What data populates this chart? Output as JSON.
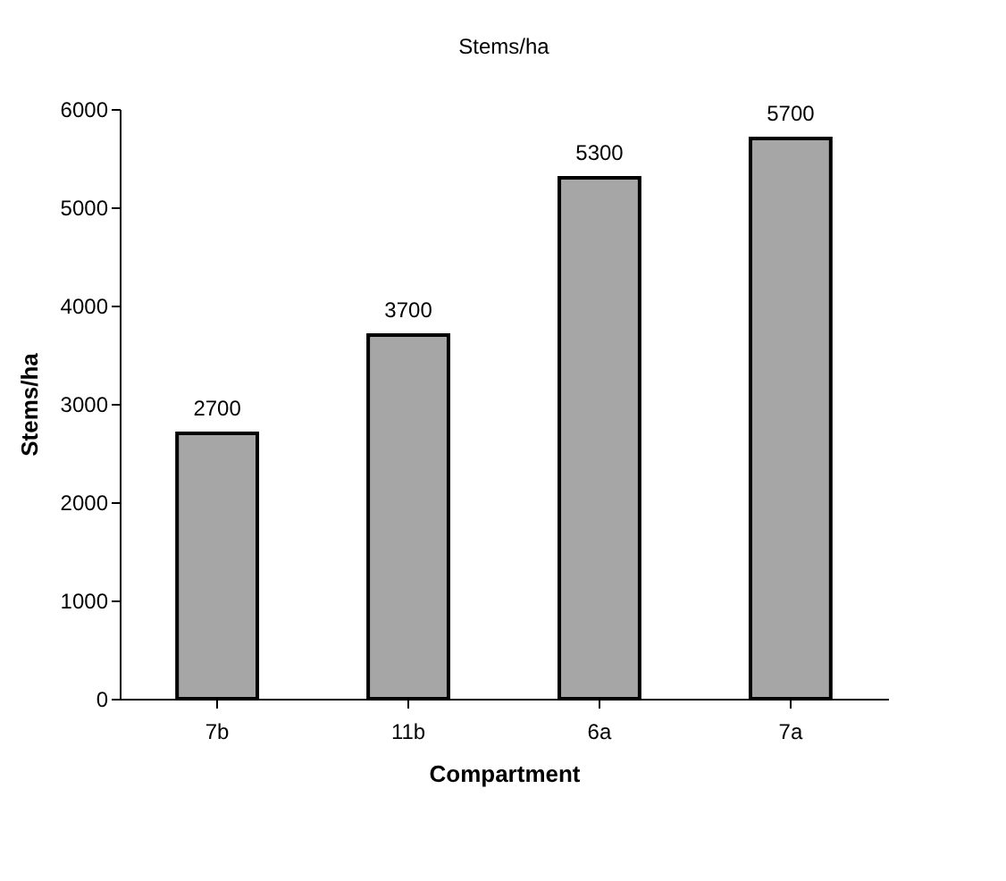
{
  "chart_data": {
    "type": "bar",
    "title": "Stems/ha",
    "xlabel": "Compartment",
    "ylabel": "Stems/ha",
    "categories": [
      "7b",
      "11b",
      "6a",
      "7a"
    ],
    "values": [
      2700,
      3700,
      5300,
      5700
    ],
    "color": "#a6a6a6",
    "ylim": [
      0,
      6000
    ],
    "yticks": [
      0,
      1000,
      2000,
      3000,
      4000,
      5000,
      6000
    ],
    "grid": false,
    "data_labels": true
  }
}
